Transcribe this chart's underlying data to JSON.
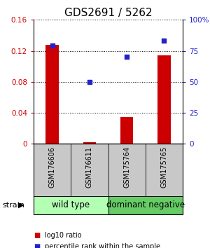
{
  "title": "GDS2691 / 5262",
  "samples": [
    "GSM176606",
    "GSM176611",
    "GSM175764",
    "GSM175765"
  ],
  "log10_ratio": [
    0.128,
    0.002,
    0.035,
    0.114
  ],
  "percentile_rank": [
    79,
    50,
    70,
    83
  ],
  "groups": [
    {
      "label": "wild type",
      "color": "#b3ffb3",
      "indices": [
        0,
        1
      ]
    },
    {
      "label": "dominant negative",
      "color": "#66cc66",
      "indices": [
        2,
        3
      ]
    }
  ],
  "bar_color": "#cc0000",
  "dot_color": "#2222cc",
  "ylim_left": [
    0,
    0.16
  ],
  "ylim_right": [
    0,
    100
  ],
  "yticks_left": [
    0,
    0.04,
    0.08,
    0.12,
    0.16
  ],
  "ytick_labels_left": [
    "0",
    "0.04",
    "0.08",
    "0.12",
    "0.16"
  ],
  "yticks_right": [
    0,
    25,
    50,
    75,
    100
  ],
  "ytick_labels_right": [
    "0",
    "25",
    "50",
    "75",
    "100%"
  ],
  "left_tick_color": "#cc0000",
  "right_tick_color": "#2222cc",
  "title_fontsize": 11,
  "tick_fontsize": 7.5,
  "sample_label_fontsize": 7,
  "group_label_fontsize": 8.5,
  "bar_width": 0.35,
  "legend_red_label": "log10 ratio",
  "legend_blue_label": "percentile rank within the sample",
  "strain_label": "strain",
  "gray_box_color": "#c8c8c8",
  "background_color": "#ffffff"
}
